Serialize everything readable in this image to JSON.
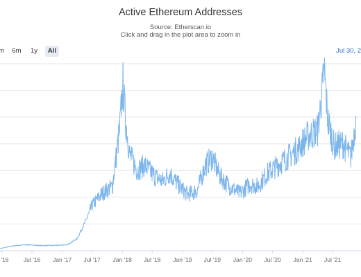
{
  "chart_data": {
    "type": "line",
    "title": "Active Ethereum Addresses",
    "subtitle_source": "Source: Etherscan.io",
    "subtitle_hint": "Click and drag in the plot area to zoom in",
    "range_buttons": [
      "m",
      "6m",
      "1y",
      "All"
    ],
    "active_range": "All",
    "range_end_date": "Jul 30, 2",
    "x_ticks": [
      "'16",
      "Jul '16",
      "Jan '17",
      "Jul '17",
      "Jan '18",
      "Jul '18",
      "Jan '19",
      "Jul '19",
      "Jan '20",
      "Jul '20",
      "Jan '21",
      "Jul '21"
    ],
    "series": [
      {
        "color": "#7cb5ec",
        "points": [
          [
            "2015-12-20",
            15000
          ],
          [
            "2016-03-01",
            35000
          ],
          [
            "2016-06-01",
            45000
          ],
          [
            "2016-09-01",
            38000
          ],
          [
            "2016-12-01",
            40000
          ],
          [
            "2017-02-01",
            45000
          ],
          [
            "2017-04-01",
            90000
          ],
          [
            "2017-05-15",
            200000
          ],
          [
            "2017-07-01",
            340000
          ],
          [
            "2017-09-01",
            430000
          ],
          [
            "2017-11-01",
            480000
          ],
          [
            "2017-12-15",
            900000
          ],
          [
            "2018-01-05",
            1250000
          ],
          [
            "2018-01-20",
            980000
          ],
          [
            "2018-02-15",
            720000
          ],
          [
            "2018-04-01",
            600000
          ],
          [
            "2018-05-15",
            640000
          ],
          [
            "2018-07-15",
            560000
          ],
          [
            "2018-09-01",
            520000
          ],
          [
            "2018-10-15",
            580000
          ],
          [
            "2018-12-15",
            480000
          ],
          [
            "2019-02-01",
            420000
          ],
          [
            "2019-04-01",
            450000
          ],
          [
            "2019-05-20",
            640000
          ],
          [
            "2019-07-01",
            700000
          ],
          [
            "2019-08-15",
            560000
          ],
          [
            "2019-10-15",
            480000
          ],
          [
            "2019-12-15",
            430000
          ],
          [
            "2020-02-15",
            500000
          ],
          [
            "2020-04-01",
            480000
          ],
          [
            "2020-06-01",
            580000
          ],
          [
            "2020-08-01",
            640000
          ],
          [
            "2020-10-01",
            700000
          ],
          [
            "2020-12-01",
            760000
          ],
          [
            "2021-02-01",
            860000
          ],
          [
            "2021-04-01",
            900000
          ],
          [
            "2021-05-12",
            1350000
          ],
          [
            "2021-06-01",
            980000
          ],
          [
            "2021-07-10",
            780000
          ],
          [
            "2021-09-01",
            800000
          ],
          [
            "2021-10-20",
            700000
          ],
          [
            "2021-11-20",
            1000000
          ]
        ]
      }
    ]
  }
}
